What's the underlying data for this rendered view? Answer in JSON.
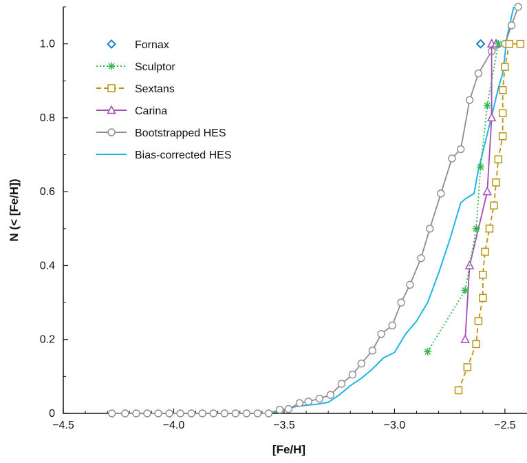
{
  "chart_data": {
    "type": "line",
    "xlabel": "[Fe/H]",
    "ylabel": "N (< [Fe/H])",
    "xlim": [
      -4.5,
      -2.4
    ],
    "ylim": [
      0,
      1.1
    ],
    "xticks": [
      -4.5,
      -4.0,
      -3.5,
      -3.0,
      -2.5
    ],
    "xtick_labels": [
      "−4.5",
      "−4.0",
      "−3.5",
      "−3.0",
      "−2.5"
    ],
    "yticks": [
      0,
      0.2,
      0.4,
      0.6,
      0.8,
      1.0
    ],
    "ytick_labels": [
      "0",
      "0.2",
      "0.4",
      "0.6",
      "0.8",
      "1.0"
    ],
    "grid": false,
    "legend_position": "top-left",
    "series": [
      {
        "name": "Fornax",
        "color": "#1a7fc4",
        "marker": "diamond",
        "line": "none",
        "x": [
          -2.61
        ],
        "y": [
          1.0
        ]
      },
      {
        "name": "Sculptor",
        "color": "#2db84a",
        "marker": "asterisk",
        "line": "dotted",
        "x": [
          -2.85,
          -2.68,
          -2.63,
          -2.61,
          -2.58,
          -2.53
        ],
        "y": [
          0.167,
          0.333,
          0.5,
          0.667,
          0.833,
          1.0
        ]
      },
      {
        "name": "Sextans",
        "color": "#b8930f",
        "marker": "square",
        "line": "dashed",
        "x": [
          -2.71,
          -2.67,
          -2.63,
          -2.62,
          -2.6,
          -2.6,
          -2.59,
          -2.57,
          -2.55,
          -2.54,
          -2.53,
          -2.51,
          -2.51,
          -2.51,
          -2.5,
          -2.48,
          -2.43
        ],
        "y": [
          0.0625,
          0.125,
          0.1875,
          0.25,
          0.3125,
          0.375,
          0.4375,
          0.5,
          0.5625,
          0.625,
          0.6875,
          0.75,
          0.8125,
          0.875,
          0.9375,
          1.0,
          1.0
        ]
      },
      {
        "name": "Carina",
        "color": "#a64ab5",
        "marker": "triangle",
        "line": "solid",
        "x": [
          -2.68,
          -2.66,
          -2.58,
          -2.56,
          -2.56,
          -2.54
        ],
        "y": [
          0.2,
          0.4,
          0.6,
          0.8,
          1.0,
          1.0
        ]
      },
      {
        "name": "Bootstrapped HES",
        "color": "#8c8c8c",
        "marker": "circle",
        "line": "solid",
        "x": [
          -4.28,
          -4.22,
          -4.17,
          -4.12,
          -4.07,
          -4.02,
          -3.97,
          -3.92,
          -3.87,
          -3.82,
          -3.77,
          -3.72,
          -3.67,
          -3.62,
          -3.57,
          -3.52,
          -3.48,
          -3.43,
          -3.39,
          -3.34,
          -3.29,
          -3.24,
          -3.19,
          -3.15,
          -3.1,
          -3.06,
          -3.01,
          -2.97,
          -2.93,
          -2.88,
          -2.84,
          -2.79,
          -2.74,
          -2.7,
          -2.66,
          -2.62,
          -2.56,
          -2.5,
          -2.47,
          -2.44
        ],
        "y": [
          0,
          0,
          0,
          0,
          0,
          0,
          0,
          0,
          0,
          0,
          0,
          0,
          0,
          0,
          0,
          0.01,
          0.012,
          0.028,
          0.032,
          0.04,
          0.05,
          0.08,
          0.105,
          0.135,
          0.17,
          0.215,
          0.238,
          0.3,
          0.348,
          0.42,
          0.5,
          0.595,
          0.69,
          0.715,
          0.848,
          0.92,
          0.98,
          1.0,
          1.05,
          1.1
        ]
      },
      {
        "name": "Bias-corrected HES",
        "color": "#1fb5e8",
        "marker": "none",
        "line": "solid",
        "x": [
          -4.28,
          -3.58,
          -3.52,
          -3.45,
          -3.4,
          -3.35,
          -3.3,
          -3.25,
          -3.2,
          -3.15,
          -3.1,
          -3.05,
          -3.0,
          -2.95,
          -2.9,
          -2.85,
          -2.8,
          -2.75,
          -2.7,
          -2.68,
          -2.64,
          -2.62,
          -2.58,
          -2.55,
          -2.53,
          -2.51,
          -2.49,
          -2.46
        ],
        "y": [
          0,
          0,
          0.005,
          0.018,
          0.022,
          0.025,
          0.03,
          0.05,
          0.075,
          0.095,
          0.12,
          0.15,
          0.165,
          0.215,
          0.25,
          0.3,
          0.38,
          0.47,
          0.57,
          0.58,
          0.595,
          0.66,
          0.755,
          0.83,
          0.88,
          0.92,
          1.02,
          1.1
        ]
      }
    ]
  }
}
